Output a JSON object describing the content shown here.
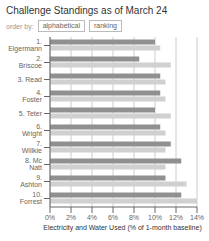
{
  "chart_data": {
    "type": "bar",
    "orientation": "horizontal",
    "title": "Challenge Standings as of March 24",
    "xlabel": "Electricity and Water Used (% of 1-month baseline)",
    "annotations": [
      "order by:",
      "alphabetical",
      "ranking"
    ],
    "categories": [
      "1. Eigermann",
      "2. Briscoe",
      "3. Read",
      "4. Foster",
      "5. Teter",
      "6. Wright",
      "7. Willkie",
      "8. Mc Natt",
      "9. Ashton",
      "10. Forrest"
    ],
    "series": [
      {
        "color": "#909090",
        "values": [
          10.0,
          8.5,
          10.5,
          10.5,
          10.0,
          10.5,
          11.5,
          12.5,
          11.0,
          12.5
        ]
      },
      {
        "color": "#d0d0d0",
        "values": [
          10.5,
          11.5,
          11.0,
          11.0,
          11.5,
          11.0,
          11.0,
          11.0,
          13.0,
          14.0
        ]
      }
    ],
    "xlim": [
      0,
      14
    ],
    "xticks": [
      {
        "value": 0,
        "label": "0%"
      },
      {
        "value": 2,
        "label": "2%"
      },
      {
        "value": 4,
        "label": "4%"
      },
      {
        "value": 6,
        "label": "6%"
      },
      {
        "value": 8,
        "label": "8%"
      },
      {
        "value": 10,
        "label": "10%"
      },
      {
        "value": 12,
        "label": "12%"
      },
      {
        "value": 14,
        "label": "14%"
      }
    ],
    "grid": true
  }
}
